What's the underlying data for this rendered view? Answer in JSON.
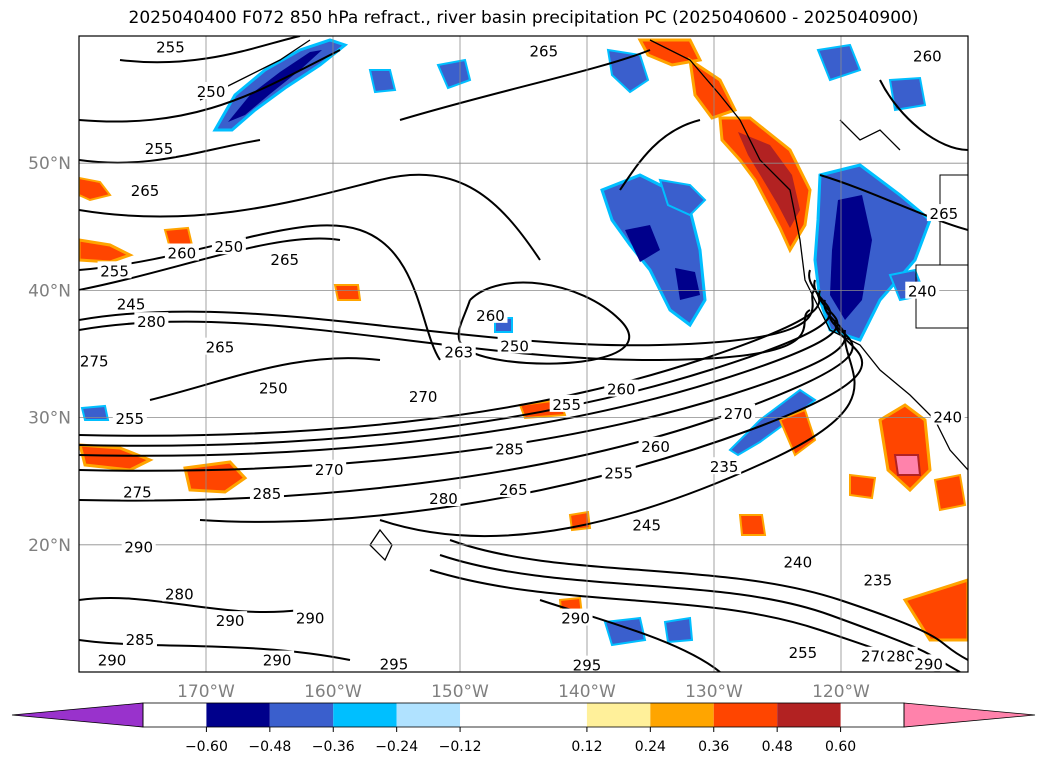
{
  "chart_data": {
    "type": "contour",
    "title": "2025040400 F072 850 hPa refract., river basin precipitation PC (2025040600 - 2025040900)",
    "lon_range": [
      -180,
      -110
    ],
    "lat_range": [
      10,
      60
    ],
    "lat_ticks": [
      {
        "value": 50,
        "label": "50°N"
      },
      {
        "value": 40,
        "label": "40°N"
      },
      {
        "value": 30,
        "label": "30°N"
      },
      {
        "value": 20,
        "label": "20°N"
      }
    ],
    "lon_ticks": [
      {
        "value": -170,
        "label": "170°W"
      },
      {
        "value": -160,
        "label": "160°W"
      },
      {
        "value": -150,
        "label": "150°W"
      },
      {
        "value": -140,
        "label": "140°W"
      },
      {
        "value": -130,
        "label": "130°W"
      },
      {
        "value": -120,
        "label": "120°W"
      }
    ],
    "grid": true,
    "colorbar": {
      "orientation": "horizontal",
      "extend": "both",
      "range": [
        -0.72,
        0.72
      ],
      "ticks": [
        {
          "value": -0.6,
          "label": "−0.60"
        },
        {
          "value": -0.48,
          "label": "−0.48"
        },
        {
          "value": -0.36,
          "label": "−0.36"
        },
        {
          "value": -0.24,
          "label": "−0.24"
        },
        {
          "value": -0.12,
          "label": "−0.12"
        },
        {
          "value": 0.12,
          "label": "0.12"
        },
        {
          "value": 0.24,
          "label": "0.24"
        },
        {
          "value": 0.36,
          "label": "0.36"
        },
        {
          "value": 0.48,
          "label": "0.48"
        },
        {
          "value": 0.6,
          "label": "0.60"
        }
      ],
      "bins": [
        {
          "from": null,
          "to": -0.6,
          "color": "#9932cc"
        },
        {
          "from": -0.6,
          "to": -0.48,
          "color": "#00008b"
        },
        {
          "from": -0.48,
          "to": -0.36,
          "color": "#3a5fcd"
        },
        {
          "from": -0.36,
          "to": -0.24,
          "color": "#00bfff"
        },
        {
          "from": -0.24,
          "to": -0.12,
          "color": "#b0e2ff"
        },
        {
          "from": -0.12,
          "to": 0.12,
          "color": "#ffffff"
        },
        {
          "from": 0.12,
          "to": 0.24,
          "color": "#fff09a"
        },
        {
          "from": 0.24,
          "to": 0.36,
          "color": "#ffa500"
        },
        {
          "from": 0.36,
          "to": 0.48,
          "color": "#ff4500"
        },
        {
          "from": 0.48,
          "to": 0.6,
          "color": "#b22222"
        },
        {
          "from": 0.6,
          "to": null,
          "color": "#ff82ab"
        }
      ]
    },
    "contour_labels": [
      {
        "text": "255",
        "lon": -172.8,
        "lat": 59.1
      },
      {
        "text": "250",
        "lon": -169.6,
        "lat": 55.6
      },
      {
        "text": "265",
        "lon": -143.4,
        "lat": 58.8
      },
      {
        "text": "260",
        "lon": -113.2,
        "lat": 58.4
      },
      {
        "text": "255",
        "lon": -173.7,
        "lat": 51.1
      },
      {
        "text": "265",
        "lon": -174.8,
        "lat": 47.8
      },
      {
        "text": "260",
        "lon": -171.9,
        "lat": 42.9
      },
      {
        "text": "250",
        "lon": -168.2,
        "lat": 43.4
      },
      {
        "text": "265",
        "lon": -163.8,
        "lat": 42.4
      },
      {
        "text": "255",
        "lon": -177.2,
        "lat": 41.5
      },
      {
        "text": "245",
        "lon": -175.9,
        "lat": 38.9
      },
      {
        "text": "280",
        "lon": -174.3,
        "lat": 37.5
      },
      {
        "text": "265",
        "lon": -168.9,
        "lat": 35.5
      },
      {
        "text": "275",
        "lon": -178.8,
        "lat": 34.4
      },
      {
        "text": "260",
        "lon": -147.6,
        "lat": 38.0
      },
      {
        "text": "263",
        "lon": -150.1,
        "lat": 35.1
      },
      {
        "text": "250",
        "lon": -145.7,
        "lat": 35.6
      },
      {
        "text": "250",
        "lon": -164.7,
        "lat": 32.3
      },
      {
        "text": "255",
        "lon": -176.0,
        "lat": 29.9
      },
      {
        "text": "270",
        "lon": -152.9,
        "lat": 31.6
      },
      {
        "text": "260",
        "lon": -137.3,
        "lat": 32.2
      },
      {
        "text": "255",
        "lon": -141.6,
        "lat": 31.0
      },
      {
        "text": "270",
        "lon": -128.1,
        "lat": 30.3
      },
      {
        "text": "285",
        "lon": -146.1,
        "lat": 27.5
      },
      {
        "text": "260",
        "lon": -134.6,
        "lat": 27.7
      },
      {
        "text": "255",
        "lon": -137.5,
        "lat": 25.6
      },
      {
        "text": "235",
        "lon": -129.2,
        "lat": 26.1
      },
      {
        "text": "270",
        "lon": -160.3,
        "lat": 25.9
      },
      {
        "text": "285",
        "lon": -165.2,
        "lat": 24.0
      },
      {
        "text": "275",
        "lon": -175.4,
        "lat": 24.1
      },
      {
        "text": "280",
        "lon": -151.3,
        "lat": 23.6
      },
      {
        "text": "265",
        "lon": -145.8,
        "lat": 24.3
      },
      {
        "text": "245",
        "lon": -135.3,
        "lat": 21.5
      },
      {
        "text": "290",
        "lon": -175.3,
        "lat": 19.8
      },
      {
        "text": "240",
        "lon": -123.4,
        "lat": 18.6
      },
      {
        "text": "235",
        "lon": -117.1,
        "lat": 17.2
      },
      {
        "text": "280",
        "lon": -172.1,
        "lat": 16.1
      },
      {
        "text": "290",
        "lon": -161.8,
        "lat": 14.2
      },
      {
        "text": "290",
        "lon": -168.1,
        "lat": 14.0
      },
      {
        "text": "290",
        "lon": -140.9,
        "lat": 14.2
      },
      {
        "text": "285",
        "lon": -175.2,
        "lat": 12.5
      },
      {
        "text": "290",
        "lon": -177.4,
        "lat": 10.9
      },
      {
        "text": "290",
        "lon": -164.4,
        "lat": 10.9
      },
      {
        "text": "295",
        "lon": -155.2,
        "lat": 10.6
      },
      {
        "text": "295",
        "lon": -140.0,
        "lat": 10.5
      },
      {
        "text": "255",
        "lon": -123.0,
        "lat": 11.5
      },
      {
        "text": "270",
        "lon": -117.3,
        "lat": 11.2
      },
      {
        "text": "280",
        "lon": -115.3,
        "lat": 11.2
      },
      {
        "text": "290",
        "lon": -113.1,
        "lat": 10.6
      },
      {
        "text": "240",
        "lon": -111.6,
        "lat": 30.0
      },
      {
        "text": "265",
        "lon": -111.9,
        "lat": 46.0
      },
      {
        "text": "240",
        "lon": -113.6,
        "lat": 39.9
      }
    ]
  }
}
